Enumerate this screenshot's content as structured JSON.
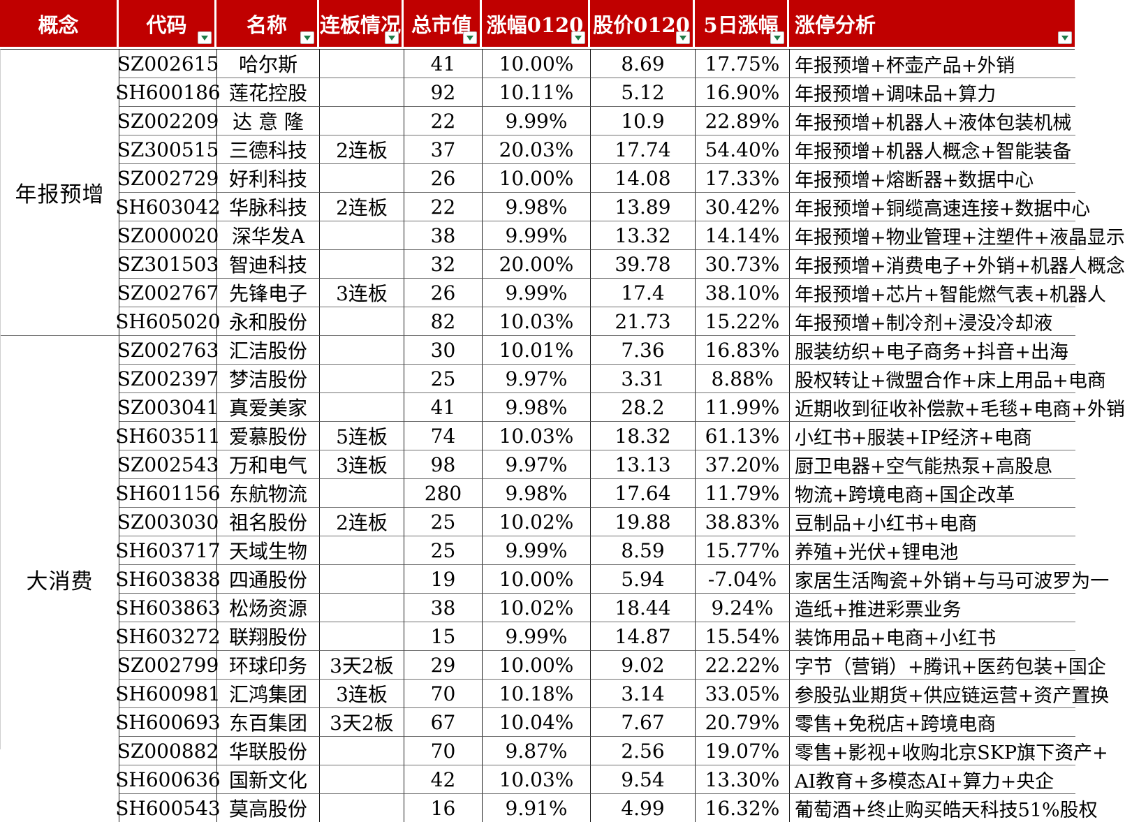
{
  "colors": {
    "header_bg": "#c00000",
    "header_text": "#ffffff",
    "filter_arrow_green": "#1e7b47",
    "grid_line_dark": "#1a1a1a",
    "grid_line_light": "#6f6f6f"
  },
  "header": {
    "columns": [
      {
        "label": "概念",
        "filter": false
      },
      {
        "label": "代码",
        "filter": true
      },
      {
        "label": "名称",
        "filter": true
      },
      {
        "label": "连板情况",
        "filter": true
      },
      {
        "label": "总市值",
        "filter": true
      },
      {
        "label": "涨幅0120",
        "filter": true
      },
      {
        "label": "股价0120",
        "filter": true
      },
      {
        "label": "5日涨幅",
        "filter": true
      },
      {
        "label": "涨停分析",
        "filter": true
      }
    ]
  },
  "groups": [
    {
      "label": "年报预增",
      "rows": [
        {
          "code": "SZ002615",
          "name": "哈尔斯",
          "boards": "",
          "cap": "41",
          "chg": "10.00%",
          "price": "8.69",
          "chg5": "17.75%",
          "analysis": "年报预增+杯壶产品+外销"
        },
        {
          "code": "SH600186",
          "name": "莲花控股",
          "boards": "",
          "cap": "92",
          "chg": "10.11%",
          "price": "5.12",
          "chg5": "16.90%",
          "analysis": "年报预增+调味品+算力"
        },
        {
          "code": "SZ002209",
          "name": "达 意 隆",
          "boards": "",
          "cap": "22",
          "chg": "9.99%",
          "price": "10.9",
          "chg5": "22.89%",
          "analysis": "年报预增+机器人+液体包装机械"
        },
        {
          "code": "SZ300515",
          "name": "三德科技",
          "boards": "2连板",
          "cap": "37",
          "chg": "20.03%",
          "price": "17.74",
          "chg5": "54.40%",
          "analysis": "年报预增+机器人概念+智能装备"
        },
        {
          "code": "SZ002729",
          "name": "好利科技",
          "boards": "",
          "cap": "26",
          "chg": "10.00%",
          "price": "14.08",
          "chg5": "17.33%",
          "analysis": "年报预增+熔断器+数据中心"
        },
        {
          "code": "SH603042",
          "name": "华脉科技",
          "boards": "2连板",
          "cap": "22",
          "chg": "9.98%",
          "price": "13.89",
          "chg5": "30.42%",
          "analysis": "年报预增+铜缆高速连接+数据中心"
        },
        {
          "code": "SZ000020",
          "name": "深华发A",
          "boards": "",
          "cap": "38",
          "chg": "9.99%",
          "price": "13.32",
          "chg5": "14.14%",
          "analysis": "年报预增+物业管理+注塑件+液晶显示"
        },
        {
          "code": "SZ301503",
          "name": "智迪科技",
          "boards": "",
          "cap": "32",
          "chg": "20.00%",
          "price": "39.78",
          "chg5": "30.73%",
          "analysis": "年报预增+消费电子+外销+机器人概念"
        },
        {
          "code": "SZ002767",
          "name": "先锋电子",
          "boards": "3连板",
          "cap": "26",
          "chg": "9.99%",
          "price": "17.4",
          "chg5": "38.10%",
          "analysis": "年报预增+芯片+智能燃气表+机器人"
        },
        {
          "code": "SH605020",
          "name": "永和股份",
          "boards": "",
          "cap": "82",
          "chg": "10.03%",
          "price": "21.73",
          "chg5": "15.22%",
          "analysis": "年报预增+制冷剂+浸没冷却液"
        }
      ]
    },
    {
      "label": "大消费",
      "rows": [
        {
          "code": "SZ002763",
          "name": "汇洁股份",
          "boards": "",
          "cap": "30",
          "chg": "10.01%",
          "price": "7.36",
          "chg5": "16.83%",
          "analysis": "服装纺织+电子商务+抖音+出海"
        },
        {
          "code": "SZ002397",
          "name": "梦洁股份",
          "boards": "",
          "cap": "25",
          "chg": "9.97%",
          "price": "3.31",
          "chg5": "8.88%",
          "analysis": "股权转让+微盟合作+床上用品+电商"
        },
        {
          "code": "SZ003041",
          "name": "真爱美家",
          "boards": "",
          "cap": "41",
          "chg": "9.98%",
          "price": "28.2",
          "chg5": "11.99%",
          "analysis": "近期收到征收补偿款+毛毯+电商+外销"
        },
        {
          "code": "SH603511",
          "name": "爱慕股份",
          "boards": "5连板",
          "cap": "74",
          "chg": "10.03%",
          "price": "18.32",
          "chg5": "61.13%",
          "analysis": "小红书+服装+IP经济+电商"
        },
        {
          "code": "SZ002543",
          "name": "万和电气",
          "boards": "3连板",
          "cap": "98",
          "chg": "9.97%",
          "price": "13.13",
          "chg5": "37.20%",
          "analysis": "厨卫电器+空气能热泵+高股息"
        },
        {
          "code": "SH601156",
          "name": "东航物流",
          "boards": "",
          "cap": "280",
          "chg": "9.98%",
          "price": "17.64",
          "chg5": "11.79%",
          "analysis": "物流+跨境电商+国企改革"
        },
        {
          "code": "SZ003030",
          "name": "祖名股份",
          "boards": "2连板",
          "cap": "25",
          "chg": "10.02%",
          "price": "19.88",
          "chg5": "38.83%",
          "analysis": "豆制品+小红书+电商"
        },
        {
          "code": "SH603717",
          "name": "天域生物",
          "boards": "",
          "cap": "25",
          "chg": "9.99%",
          "price": "8.59",
          "chg5": "15.77%",
          "analysis": "养殖+光伏+锂电池"
        },
        {
          "code": "SH603838",
          "name": "四通股份",
          "boards": "",
          "cap": "19",
          "chg": "10.00%",
          "price": "5.94",
          "chg5": "-7.04%",
          "analysis": "家居生活陶瓷+外销+与马可波罗为一"
        },
        {
          "code": "SH603863",
          "name": "松炀资源",
          "boards": "",
          "cap": "38",
          "chg": "10.02%",
          "price": "18.44",
          "chg5": "9.24%",
          "analysis": "造纸+推进彩票业务"
        },
        {
          "code": "SH603272",
          "name": "联翔股份",
          "boards": "",
          "cap": "15",
          "chg": "9.99%",
          "price": "14.87",
          "chg5": "15.54%",
          "analysis": "装饰用品+电商+小红书"
        },
        {
          "code": "SZ002799",
          "name": "环球印务",
          "boards": "3天2板",
          "cap": "29",
          "chg": "10.00%",
          "price": "9.02",
          "chg5": "22.22%",
          "analysis": "字节（营销）+腾讯+医药包装+国企"
        },
        {
          "code": "SH600981",
          "name": "汇鸿集团",
          "boards": "3连板",
          "cap": "70",
          "chg": "10.18%",
          "price": "3.14",
          "chg5": "33.05%",
          "analysis": "参股弘业期货+供应链运营+资产置换"
        },
        {
          "code": "SH600693",
          "name": "东百集团",
          "boards": "3天2板",
          "cap": "67",
          "chg": "10.04%",
          "price": "7.67",
          "chg5": "20.79%",
          "analysis": "零售+免税店+跨境电商"
        },
        {
          "code": "SZ000882",
          "name": "华联股份",
          "boards": "",
          "cap": "70",
          "chg": "9.87%",
          "price": "2.56",
          "chg5": "19.07%",
          "analysis": "零售+影视+收购北京SKP旗下资产+"
        },
        {
          "code": "SH600636",
          "name": "国新文化",
          "boards": "",
          "cap": "42",
          "chg": "10.03%",
          "price": "9.54",
          "chg5": "13.30%",
          "analysis": "AI教育+多模态AI+算力+央企"
        },
        {
          "code": "SH600543",
          "name": "莫高股份",
          "boards": "",
          "cap": "16",
          "chg": "9.91%",
          "price": "4.99",
          "chg5": "16.32%",
          "analysis": "葡萄酒+终止购买皓天科技51%股权"
        }
      ]
    }
  ]
}
